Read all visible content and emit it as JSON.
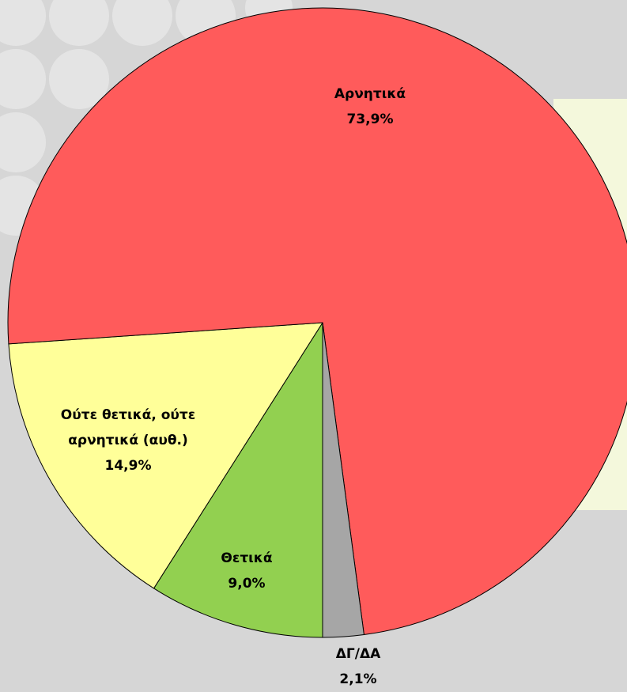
{
  "chart_data": {
    "type": "pie",
    "categories": [
      "Θετικά",
      "Ούτε θετικά, ούτε αρνητικά (αυθ.)",
      "Αρνητικά",
      "ΔΓ/ΔΑ"
    ],
    "values": [
      9.0,
      14.9,
      73.9,
      2.1
    ],
    "value_labels": [
      "9,0%",
      "14,9%",
      "73,9%",
      "2,1%"
    ],
    "colors": [
      "#92d050",
      "#ffff99",
      "#ff5b5b",
      "#a6a6a6"
    ]
  }
}
